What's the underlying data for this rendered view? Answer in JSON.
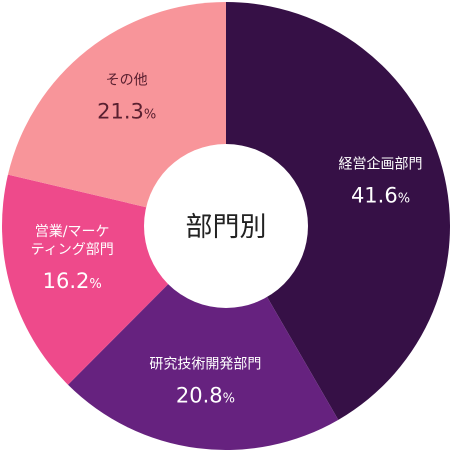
{
  "chart_data": {
    "type": "pie",
    "donut": true,
    "center_label": "部門別",
    "unit": "%",
    "slices": [
      {
        "name": "経営企画部門",
        "value": 41.6,
        "display": "41.6",
        "color": "#361046",
        "text_color": "#ffffff"
      },
      {
        "name": "研究技術開発部門",
        "value": 20.8,
        "display": "20.8",
        "color": "#66227f",
        "text_color": "#ffffff"
      },
      {
        "name": "営業/マーケティング部門",
        "name_lines": [
          "営業/マーケ",
          "ティング部門"
        ],
        "value": 16.2,
        "display": "16.2",
        "color": "#ee4a8b",
        "text_color": "#ffffff"
      },
      {
        "name": "その他",
        "value": 21.3,
        "display": "21.3",
        "color": "#f8959a",
        "text_color": "#5a2030"
      }
    ]
  }
}
